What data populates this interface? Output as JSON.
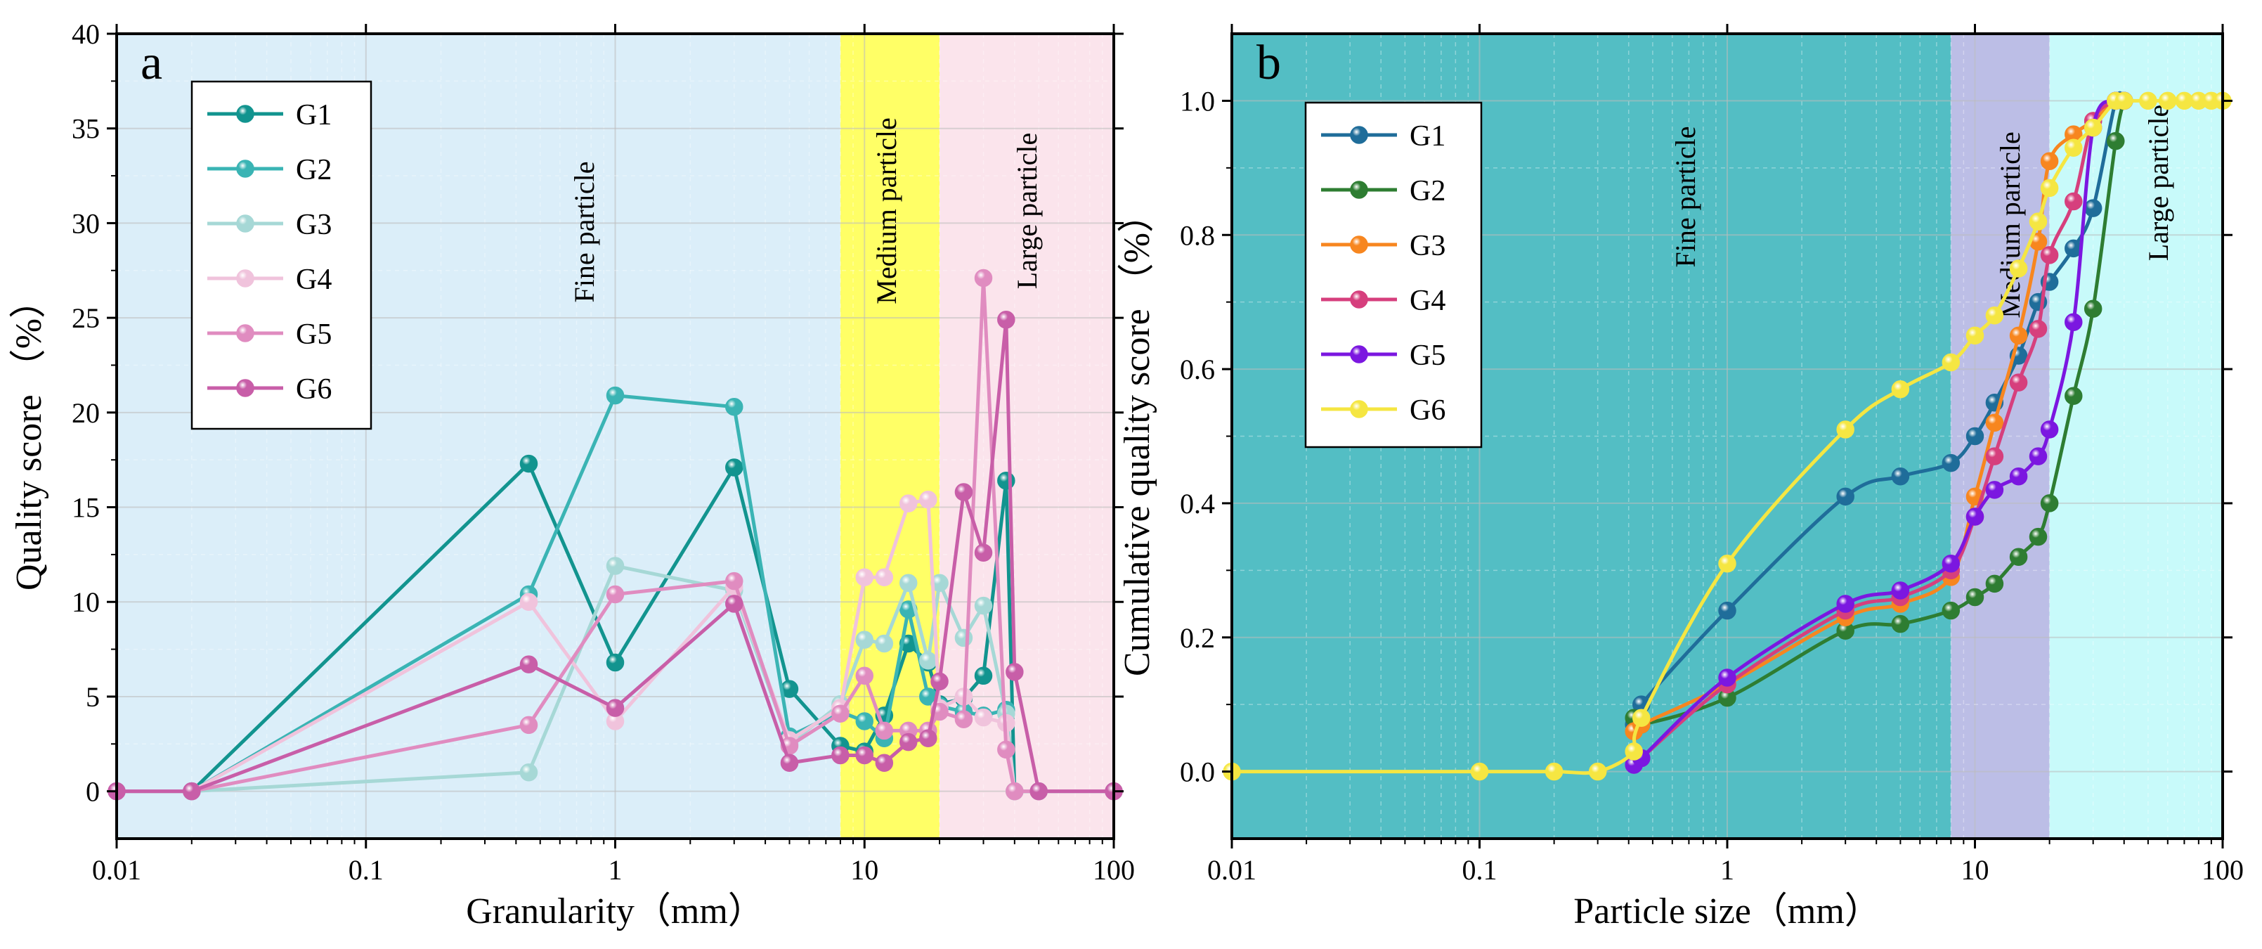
{
  "chart_data": [
    {
      "panel_label": "a",
      "type": "line",
      "xscale": "log",
      "xlim": [
        0.01,
        100
      ],
      "ylim": [
        -2.5,
        40
      ],
      "xlabel": "Granularity（mm）",
      "ylabel": "Quality score （%）",
      "xticks": [
        0.01,
        0.1,
        1,
        10,
        100
      ],
      "xtick_labels": [
        "0.01",
        "0.1",
        "1",
        "10",
        "100"
      ],
      "yticks": [
        0,
        5,
        10,
        15,
        20,
        25,
        30,
        35,
        40
      ],
      "ytick_labels": [
        "0",
        "5",
        "10",
        "15",
        "20",
        "25",
        "30",
        "35",
        "40"
      ],
      "grid": true,
      "legend_position": "top-left",
      "regions": [
        {
          "label": "Fine particle",
          "from": 0.01,
          "to": 8,
          "color": "#dbeef9"
        },
        {
          "label": "Medium particle",
          "from": 8,
          "to": 20,
          "color": "#ffff66"
        },
        {
          "label": "Large particle",
          "from": 20,
          "to": 100,
          "color": "#fbe4ec"
        }
      ],
      "series": [
        {
          "name": "G1",
          "color": "#12948f",
          "x": [
            0.01,
            0.02,
            0.45,
            1,
            3,
            5,
            8,
            10,
            12,
            15,
            18,
            20,
            25,
            30,
            37,
            40,
            50,
            100
          ],
          "y": [
            0,
            0,
            17.3,
            6.8,
            17.1,
            5.4,
            2.4,
            2.1,
            4.0,
            7.8,
            6.8,
            4.6,
            4.9,
            6.1,
            16.4,
            0,
            0,
            0
          ]
        },
        {
          "name": "G2",
          "color": "#3ab4b4",
          "x": [
            0.01,
            0.02,
            0.45,
            1,
            3,
            5,
            8,
            10,
            12,
            15,
            18,
            20,
            25,
            30,
            37,
            40,
            50,
            100
          ],
          "y": [
            0,
            0,
            10.4,
            20.9,
            20.3,
            2.9,
            4.2,
            3.7,
            2.8,
            9.6,
            5.0,
            4.5,
            4.2,
            4.0,
            4.3,
            0,
            0,
            0
          ]
        },
        {
          "name": "G3",
          "color": "#a6d8d6",
          "x": [
            0.01,
            0.02,
            0.45,
            1,
            3,
            5,
            8,
            10,
            12,
            15,
            18,
            20,
            25,
            30,
            37,
            40,
            50,
            100
          ],
          "y": [
            0,
            0,
            1.0,
            11.9,
            10.6,
            2.5,
            4.6,
            8.0,
            7.8,
            11.0,
            6.9,
            11.0,
            8.1,
            9.8,
            4.1,
            0,
            0,
            0
          ]
        },
        {
          "name": "G4",
          "color": "#f0c3dc",
          "x": [
            0.01,
            0.02,
            0.45,
            1,
            3,
            5,
            8,
            10,
            12,
            15,
            18,
            20,
            25,
            30,
            37,
            40,
            50,
            100
          ],
          "y": [
            0,
            0,
            10.0,
            3.7,
            10.8,
            2.7,
            4.4,
            11.3,
            11.3,
            15.2,
            15.4,
            4.4,
            5.0,
            3.9,
            3.6,
            0,
            0,
            0
          ]
        },
        {
          "name": "G5",
          "color": "#e08cc0",
          "x": [
            0.01,
            0.02,
            0.45,
            1,
            3,
            5,
            8,
            10,
            12,
            15,
            18,
            20,
            25,
            30,
            37,
            40,
            50,
            100
          ],
          "y": [
            0,
            0,
            3.5,
            10.4,
            11.1,
            2.4,
            4.1,
            6.1,
            3.2,
            3.2,
            3.2,
            4.2,
            3.8,
            27.1,
            2.2,
            0,
            0,
            0
          ]
        },
        {
          "name": "G6",
          "color": "#c85ea8",
          "x": [
            0.01,
            0.02,
            0.45,
            1,
            3,
            5,
            8,
            10,
            12,
            15,
            18,
            20,
            25,
            30,
            37,
            40,
            50,
            100
          ],
          "y": [
            0,
            0,
            6.7,
            4.4,
            9.9,
            1.5,
            1.9,
            1.9,
            1.5,
            2.6,
            2.8,
            5.8,
            15.8,
            12.6,
            24.9,
            6.3,
            0,
            0
          ]
        }
      ]
    },
    {
      "panel_label": "b",
      "type": "line",
      "xscale": "log",
      "xlim": [
        0.01,
        100
      ],
      "ylim": [
        -0.1,
        1.1
      ],
      "xlabel": "Particle size（mm）",
      "ylabel": "Cumulative quality score （%）",
      "xticks": [
        0.01,
        0.1,
        1,
        10,
        100
      ],
      "xtick_labels": [
        "0.01",
        "0.1",
        "1",
        "10",
        "100"
      ],
      "yticks": [
        0,
        0.2,
        0.4,
        0.6,
        0.8,
        1.0
      ],
      "ytick_labels": [
        "0.0",
        "0.2",
        "0.4",
        "0.6",
        "0.8",
        "1.0"
      ],
      "grid": true,
      "legend_position": "top-left",
      "regions": [
        {
          "label": "Fine particle",
          "from": 0.01,
          "to": 8,
          "color": "#53bec4"
        },
        {
          "label": "Medium particle",
          "from": 8,
          "to": 20,
          "color": "#bcbee6"
        },
        {
          "label": "Large particle",
          "from": 20,
          "to": 100,
          "color": "#c8fafa"
        }
      ],
      "series": [
        {
          "name": "G1",
          "color": "#1f6d9a",
          "x": [
            0.42,
            0.45,
            1,
            3,
            5,
            8,
            10,
            12,
            15,
            18,
            20,
            25,
            30,
            37,
            40
          ],
          "y": [
            0.07,
            0.1,
            0.24,
            0.41,
            0.44,
            0.46,
            0.5,
            0.55,
            0.62,
            0.7,
            0.73,
            0.78,
            0.84,
            1.0,
            1.0
          ]
        },
        {
          "name": "G2",
          "color": "#2e7d32",
          "x": [
            0.42,
            0.45,
            1,
            3,
            5,
            8,
            10,
            12,
            15,
            18,
            20,
            25,
            30,
            37,
            40
          ],
          "y": [
            0.08,
            0.07,
            0.11,
            0.21,
            0.22,
            0.24,
            0.26,
            0.28,
            0.32,
            0.35,
            0.4,
            0.56,
            0.69,
            0.94,
            1.0
          ]
        },
        {
          "name": "G3",
          "color": "#f7861f",
          "x": [
            0.42,
            0.45,
            1,
            3,
            5,
            8,
            10,
            12,
            15,
            18,
            20,
            25,
            30,
            37,
            40
          ],
          "y": [
            0.06,
            0.07,
            0.13,
            0.23,
            0.25,
            0.29,
            0.41,
            0.52,
            0.65,
            0.79,
            0.91,
            0.95,
            0.97,
            1.0,
            1.0
          ]
        },
        {
          "name": "G4",
          "color": "#d63f7d",
          "x": [
            0.42,
            0.45,
            1,
            3,
            5,
            8,
            10,
            12,
            15,
            18,
            20,
            25,
            30,
            37,
            40
          ],
          "y": [
            0.01,
            0.02,
            0.13,
            0.24,
            0.26,
            0.3,
            0.38,
            0.47,
            0.58,
            0.66,
            0.77,
            0.85,
            0.97,
            1.0,
            1.0
          ]
        },
        {
          "name": "G5",
          "color": "#7b17e0",
          "x": [
            0.42,
            0.45,
            1,
            3,
            5,
            8,
            10,
            12,
            15,
            18,
            20,
            25,
            30,
            37,
            40
          ],
          "y": [
            0.01,
            0.02,
            0.14,
            0.25,
            0.27,
            0.31,
            0.38,
            0.42,
            0.44,
            0.47,
            0.51,
            0.67,
            0.96,
            1.0,
            1.0
          ]
        },
        {
          "name": "G6",
          "color": "#f5e642",
          "x": [
            0.01,
            0.1,
            0.2,
            0.3,
            0.42,
            0.45,
            1,
            3,
            5,
            8,
            10,
            12,
            15,
            18,
            20,
            25,
            30,
            37,
            40,
            50,
            60,
            70,
            80,
            90,
            100
          ],
          "y": [
            0,
            0,
            0,
            0,
            0.03,
            0.08,
            0.31,
            0.51,
            0.57,
            0.61,
            0.65,
            0.68,
            0.75,
            0.82,
            0.87,
            0.93,
            0.96,
            1.0,
            1.0,
            1.0,
            1.0,
            1.0,
            1.0,
            1.0,
            1.0
          ]
        }
      ]
    }
  ]
}
